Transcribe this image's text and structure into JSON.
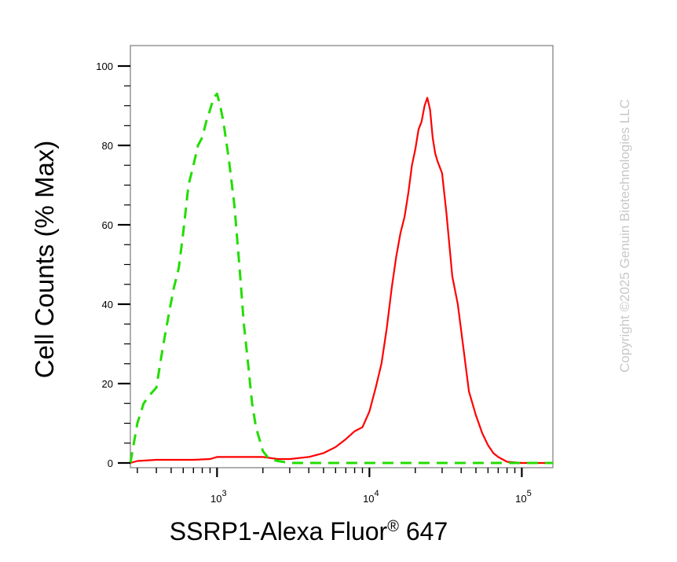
{
  "chart_data": {
    "type": "line",
    "xlabel": "SSRP1-Alexa Fluor",
    "xlabel_reg": "®",
    "xlabel_tail": " 647",
    "ylabel": "Cell Counts (% Max)",
    "x_scale": "log",
    "xlim": [
      270,
      160000
    ],
    "ylim": [
      0,
      105
    ],
    "y_ticks": [
      0,
      20,
      40,
      60,
      80,
      100
    ],
    "x_ticks": [
      {
        "base": "10",
        "exp": "3",
        "value": 1000
      },
      {
        "base": "10",
        "exp": "4",
        "value": 10000
      },
      {
        "base": "10",
        "exp": "5",
        "value": 100000
      }
    ],
    "grid": false,
    "series": [
      {
        "color": "#ff0000",
        "style": "solid",
        "x": [
          270,
          300,
          400,
          500,
          700,
          900,
          1000,
          1200,
          1500,
          2000,
          2500,
          3000,
          4000,
          5000,
          6000,
          7000,
          8000,
          9000,
          10000,
          11000,
          12000,
          13000,
          14000,
          15000,
          16000,
          17000,
          18000,
          19000,
          20000,
          21000,
          22000,
          23000,
          24000,
          25000,
          26000,
          27000,
          28000,
          30000,
          32000,
          35000,
          38000,
          42000,
          45000,
          50000,
          55000,
          60000,
          65000,
          70000,
          80000,
          100000,
          160000
        ],
        "values": [
          0,
          0.5,
          0.8,
          0.8,
          0.8,
          1.0,
          1.5,
          1.5,
          1.5,
          1.5,
          1.0,
          1.0,
          1.5,
          2.5,
          4.0,
          6.0,
          8.0,
          9.0,
          13.0,
          19.0,
          25.0,
          34.0,
          44.0,
          52.0,
          58.0,
          62.0,
          68.0,
          75.0,
          79.0,
          84.0,
          86.0,
          90.0,
          92.0,
          89.0,
          82.0,
          78.0,
          76.0,
          73.0,
          63.0,
          47.0,
          40.0,
          27.0,
          18.0,
          12.0,
          7.5,
          4.5,
          2.5,
          1.5,
          0.3,
          0,
          0
        ]
      },
      {
        "color": "#22dd00",
        "style": "dashed",
        "x": [
          270,
          300,
          330,
          360,
          400,
          440,
          480,
          520,
          560,
          600,
          650,
          700,
          750,
          800,
          850,
          900,
          950,
          1000,
          1050,
          1100,
          1150,
          1200,
          1300,
          1400,
          1500,
          1600,
          1700,
          1800,
          2000,
          2200,
          2500,
          3000,
          5000,
          10000,
          100000,
          160000
        ],
        "values": [
          0,
          10,
          15,
          17,
          19,
          29,
          37,
          44,
          49,
          58,
          70,
          75,
          80,
          82,
          86,
          89,
          92,
          93,
          90,
          86,
          81,
          76,
          65,
          50,
          35,
          25,
          15,
          9,
          3,
          1,
          0.5,
          0,
          0,
          0,
          0,
          0
        ]
      }
    ]
  },
  "watermark": "Copyright ©2025 Genuin Biotechnologies LLC"
}
